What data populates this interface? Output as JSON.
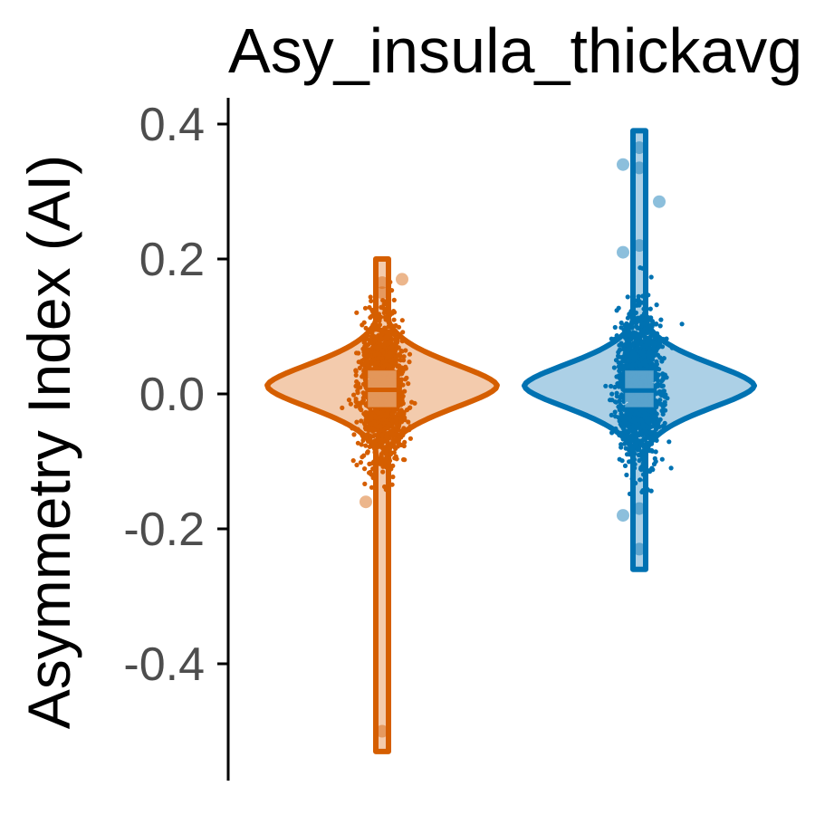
{
  "chart_data": {
    "type": "violin",
    "title": "Asy_insula_thickavg",
    "xlabel": "",
    "ylabel": "Asymmetry Index (AI)",
    "ylim": [
      -0.56,
      0.44
    ],
    "yticks": [
      0.4,
      0.2,
      0.0,
      -0.2,
      -0.4
    ],
    "ytick_labels": [
      "0.4",
      "0.2",
      "0.0",
      "-0.2",
      "-0.4"
    ],
    "grid": false,
    "legend": "none",
    "series": [
      {
        "color": "#d55e00",
        "fill": "#f3cbad",
        "min": -0.53,
        "max": 0.2,
        "q1": -0.02,
        "median": 0.006,
        "q3": 0.035,
        "n_points": 1800,
        "jitter_sd": 0.05,
        "outliers": [
          -0.5,
          -0.16,
          0.165,
          0.17,
          0.15
        ]
      },
      {
        "color": "#0072b2",
        "fill": "#acd0e6",
        "min": -0.26,
        "max": 0.39,
        "q1": -0.02,
        "median": 0.005,
        "q3": 0.035,
        "n_points": 1800,
        "jitter_sd": 0.05,
        "outliers": [
          0.365,
          0.34,
          0.335,
          0.285,
          0.22,
          0.21,
          -0.17,
          -0.18,
          -0.23
        ]
      }
    ]
  }
}
